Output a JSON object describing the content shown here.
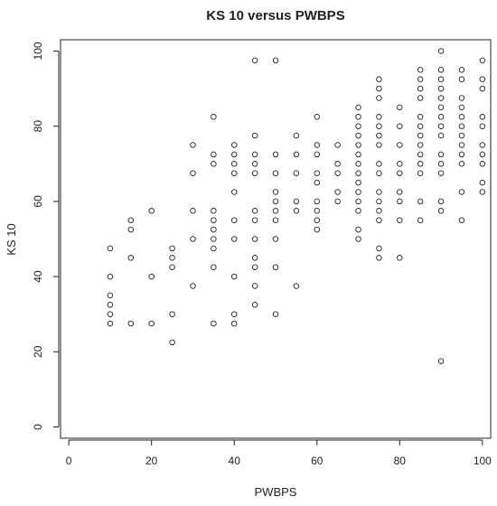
{
  "chart_data": {
    "type": "scatter",
    "title": "KS 10 versus PWBPS",
    "xlabel": "PWBPS",
    "ylabel": "KS 10",
    "xlim": [
      -2,
      102
    ],
    "ylim": [
      -3,
      103
    ],
    "xticks": [
      0,
      20,
      40,
      60,
      80,
      100
    ],
    "yticks": [
      0,
      20,
      40,
      60,
      80,
      100
    ],
    "xtick_labels": [
      "0",
      "20",
      "40",
      "60",
      "80",
      "100"
    ],
    "ytick_labels": [
      "0",
      "20",
      "40",
      "60",
      "80",
      "100"
    ],
    "grid": false,
    "marker": "open-circle",
    "marker_color": "#222222",
    "points": [
      [
        10,
        27.5
      ],
      [
        10,
        30
      ],
      [
        10,
        32.5
      ],
      [
        10,
        35
      ],
      [
        10,
        40
      ],
      [
        10,
        47.5
      ],
      [
        15,
        27.5
      ],
      [
        15,
        45
      ],
      [
        15,
        52.5
      ],
      [
        15,
        55
      ],
      [
        20,
        27.5
      ],
      [
        20,
        40
      ],
      [
        20,
        57.5
      ],
      [
        25,
        22.5
      ],
      [
        25,
        30
      ],
      [
        25,
        42.5
      ],
      [
        25,
        45
      ],
      [
        25,
        47.5
      ],
      [
        30,
        37.5
      ],
      [
        30,
        50
      ],
      [
        30,
        57.5
      ],
      [
        30,
        67.5
      ],
      [
        30,
        75
      ],
      [
        35,
        27.5
      ],
      [
        35,
        42.5
      ],
      [
        35,
        47.5
      ],
      [
        35,
        50
      ],
      [
        35,
        52.5
      ],
      [
        35,
        55
      ],
      [
        35,
        57.5
      ],
      [
        35,
        70
      ],
      [
        35,
        72.5
      ],
      [
        35,
        82.5
      ],
      [
        40,
        27.5
      ],
      [
        40,
        30
      ],
      [
        40,
        40
      ],
      [
        40,
        50
      ],
      [
        40,
        55
      ],
      [
        40,
        62.5
      ],
      [
        40,
        67.5
      ],
      [
        40,
        70
      ],
      [
        40,
        72.5
      ],
      [
        40,
        75
      ],
      [
        45,
        32.5
      ],
      [
        45,
        37.5
      ],
      [
        45,
        42.5
      ],
      [
        45,
        45
      ],
      [
        45,
        50
      ],
      [
        45,
        55
      ],
      [
        45,
        57.5
      ],
      [
        45,
        67.5
      ],
      [
        45,
        70
      ],
      [
        45,
        72.5
      ],
      [
        45,
        77.5
      ],
      [
        45,
        97.5
      ],
      [
        50,
        30
      ],
      [
        50,
        42.5
      ],
      [
        50,
        50
      ],
      [
        50,
        55
      ],
      [
        50,
        57.5
      ],
      [
        50,
        60
      ],
      [
        50,
        62.5
      ],
      [
        50,
        67.5
      ],
      [
        50,
        72.5
      ],
      [
        50,
        97.5
      ],
      [
        55,
        37.5
      ],
      [
        55,
        57.5
      ],
      [
        55,
        60
      ],
      [
        55,
        67.5
      ],
      [
        55,
        72.5
      ],
      [
        55,
        77.5
      ],
      [
        60,
        52.5
      ],
      [
        60,
        55
      ],
      [
        60,
        57.5
      ],
      [
        60,
        60
      ],
      [
        60,
        65
      ],
      [
        60,
        67.5
      ],
      [
        60,
        72.5
      ],
      [
        60,
        75
      ],
      [
        60,
        82.5
      ],
      [
        65,
        60
      ],
      [
        65,
        62.5
      ],
      [
        65,
        67.5
      ],
      [
        65,
        70
      ],
      [
        65,
        75
      ],
      [
        70,
        50
      ],
      [
        70,
        52.5
      ],
      [
        70,
        57.5
      ],
      [
        70,
        60
      ],
      [
        70,
        62.5
      ],
      [
        70,
        65
      ],
      [
        70,
        67.5
      ],
      [
        70,
        70
      ],
      [
        70,
        72.5
      ],
      [
        70,
        75
      ],
      [
        70,
        77.5
      ],
      [
        70,
        80
      ],
      [
        70,
        82.5
      ],
      [
        70,
        85
      ],
      [
        75,
        45
      ],
      [
        75,
        47.5
      ],
      [
        75,
        55
      ],
      [
        75,
        57.5
      ],
      [
        75,
        60
      ],
      [
        75,
        62.5
      ],
      [
        75,
        67.5
      ],
      [
        75,
        70
      ],
      [
        75,
        75
      ],
      [
        75,
        77.5
      ],
      [
        75,
        80
      ],
      [
        75,
        82.5
      ],
      [
        75,
        87.5
      ],
      [
        75,
        90
      ],
      [
        75,
        92.5
      ],
      [
        80,
        45
      ],
      [
        80,
        55
      ],
      [
        80,
        60
      ],
      [
        80,
        62.5
      ],
      [
        80,
        67.5
      ],
      [
        80,
        70
      ],
      [
        80,
        75
      ],
      [
        80,
        80
      ],
      [
        80,
        85
      ],
      [
        85,
        55
      ],
      [
        85,
        60
      ],
      [
        85,
        67.5
      ],
      [
        85,
        70
      ],
      [
        85,
        72.5
      ],
      [
        85,
        75
      ],
      [
        85,
        77.5
      ],
      [
        85,
        80
      ],
      [
        85,
        82.5
      ],
      [
        85,
        87.5
      ],
      [
        85,
        90
      ],
      [
        85,
        92.5
      ],
      [
        85,
        95
      ],
      [
        90,
        17.5
      ],
      [
        90,
        57.5
      ],
      [
        90,
        60
      ],
      [
        90,
        67.5
      ],
      [
        90,
        70
      ],
      [
        90,
        72.5
      ],
      [
        90,
        77.5
      ],
      [
        90,
        80
      ],
      [
        90,
        82.5
      ],
      [
        90,
        85
      ],
      [
        90,
        87.5
      ],
      [
        90,
        90
      ],
      [
        90,
        92.5
      ],
      [
        90,
        95
      ],
      [
        90,
        100
      ],
      [
        95,
        55
      ],
      [
        95,
        62.5
      ],
      [
        95,
        70
      ],
      [
        95,
        72.5
      ],
      [
        95,
        75
      ],
      [
        95,
        77.5
      ],
      [
        95,
        80
      ],
      [
        95,
        82.5
      ],
      [
        95,
        85
      ],
      [
        95,
        87.5
      ],
      [
        95,
        92.5
      ],
      [
        95,
        95
      ],
      [
        100,
        62.5
      ],
      [
        100,
        65
      ],
      [
        100,
        70
      ],
      [
        100,
        72.5
      ],
      [
        100,
        75
      ],
      [
        100,
        80
      ],
      [
        100,
        82.5
      ],
      [
        100,
        90
      ],
      [
        100,
        92.5
      ],
      [
        100,
        97.5
      ]
    ]
  }
}
